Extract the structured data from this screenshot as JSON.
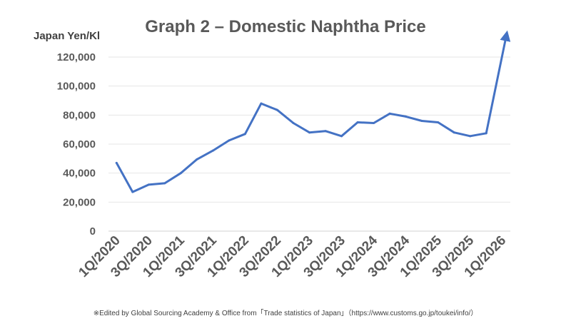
{
  "chart_data": {
    "type": "line",
    "title": "Graph 2 – Domestic Naphtha Price",
    "ylabel": "Japan Yen/Kl",
    "xlabel": "",
    "ylim": [
      0,
      120000
    ],
    "yticks": [
      "0",
      "20,000",
      "40,000",
      "60,000",
      "80,000",
      "100,000",
      "120,000"
    ],
    "grid": true,
    "x": [
      "1Q/2020",
      "2Q/2020",
      "3Q/2020",
      "4Q/2020",
      "1Q/2021",
      "2Q/2021",
      "3Q/2021",
      "4Q/2021",
      "1Q/2022",
      "2Q/2022",
      "3Q/2022",
      "4Q/2022",
      "1Q/2023",
      "2Q/2023",
      "3Q/2023",
      "4Q/2023",
      "1Q/2024",
      "2Q/2024",
      "3Q/2024",
      "4Q/2024",
      "1Q/2025",
      "2Q/2025",
      "3Q/2025",
      "4Q/2025",
      "1Q/2026"
    ],
    "xtick_labels": [
      "1Q/2020",
      "3Q/2020",
      "1Q/2021",
      "3Q/2021",
      "1Q/2022",
      "3Q/2022",
      "1Q/2023",
      "3Q/2023",
      "1Q/2024",
      "3Q/2024",
      "1Q/2025",
      "3Q/2025",
      "1Q/2026"
    ],
    "series": [
      {
        "name": "Domestic Naphtha Price",
        "color": "#4472C4",
        "values": [
          47000,
          27000,
          32000,
          33000,
          40000,
          49500,
          55500,
          62500,
          67000,
          88000,
          83500,
          74500,
          68000,
          69000,
          65500,
          75000,
          74500,
          81000,
          79000,
          76000,
          75000,
          68000,
          65500,
          67500,
          null
        ]
      }
    ],
    "annotation": {
      "type": "arrow",
      "from": "4Q/2025",
      "direction": "up",
      "note": "Sharp rise beyond chart range toward 1Q/2026"
    },
    "footnote": "※Edited by  Global Sourcing Academy & Office from「Trade statistics of Japan」（https://www.customs.go.jp/toukei/info/）"
  }
}
